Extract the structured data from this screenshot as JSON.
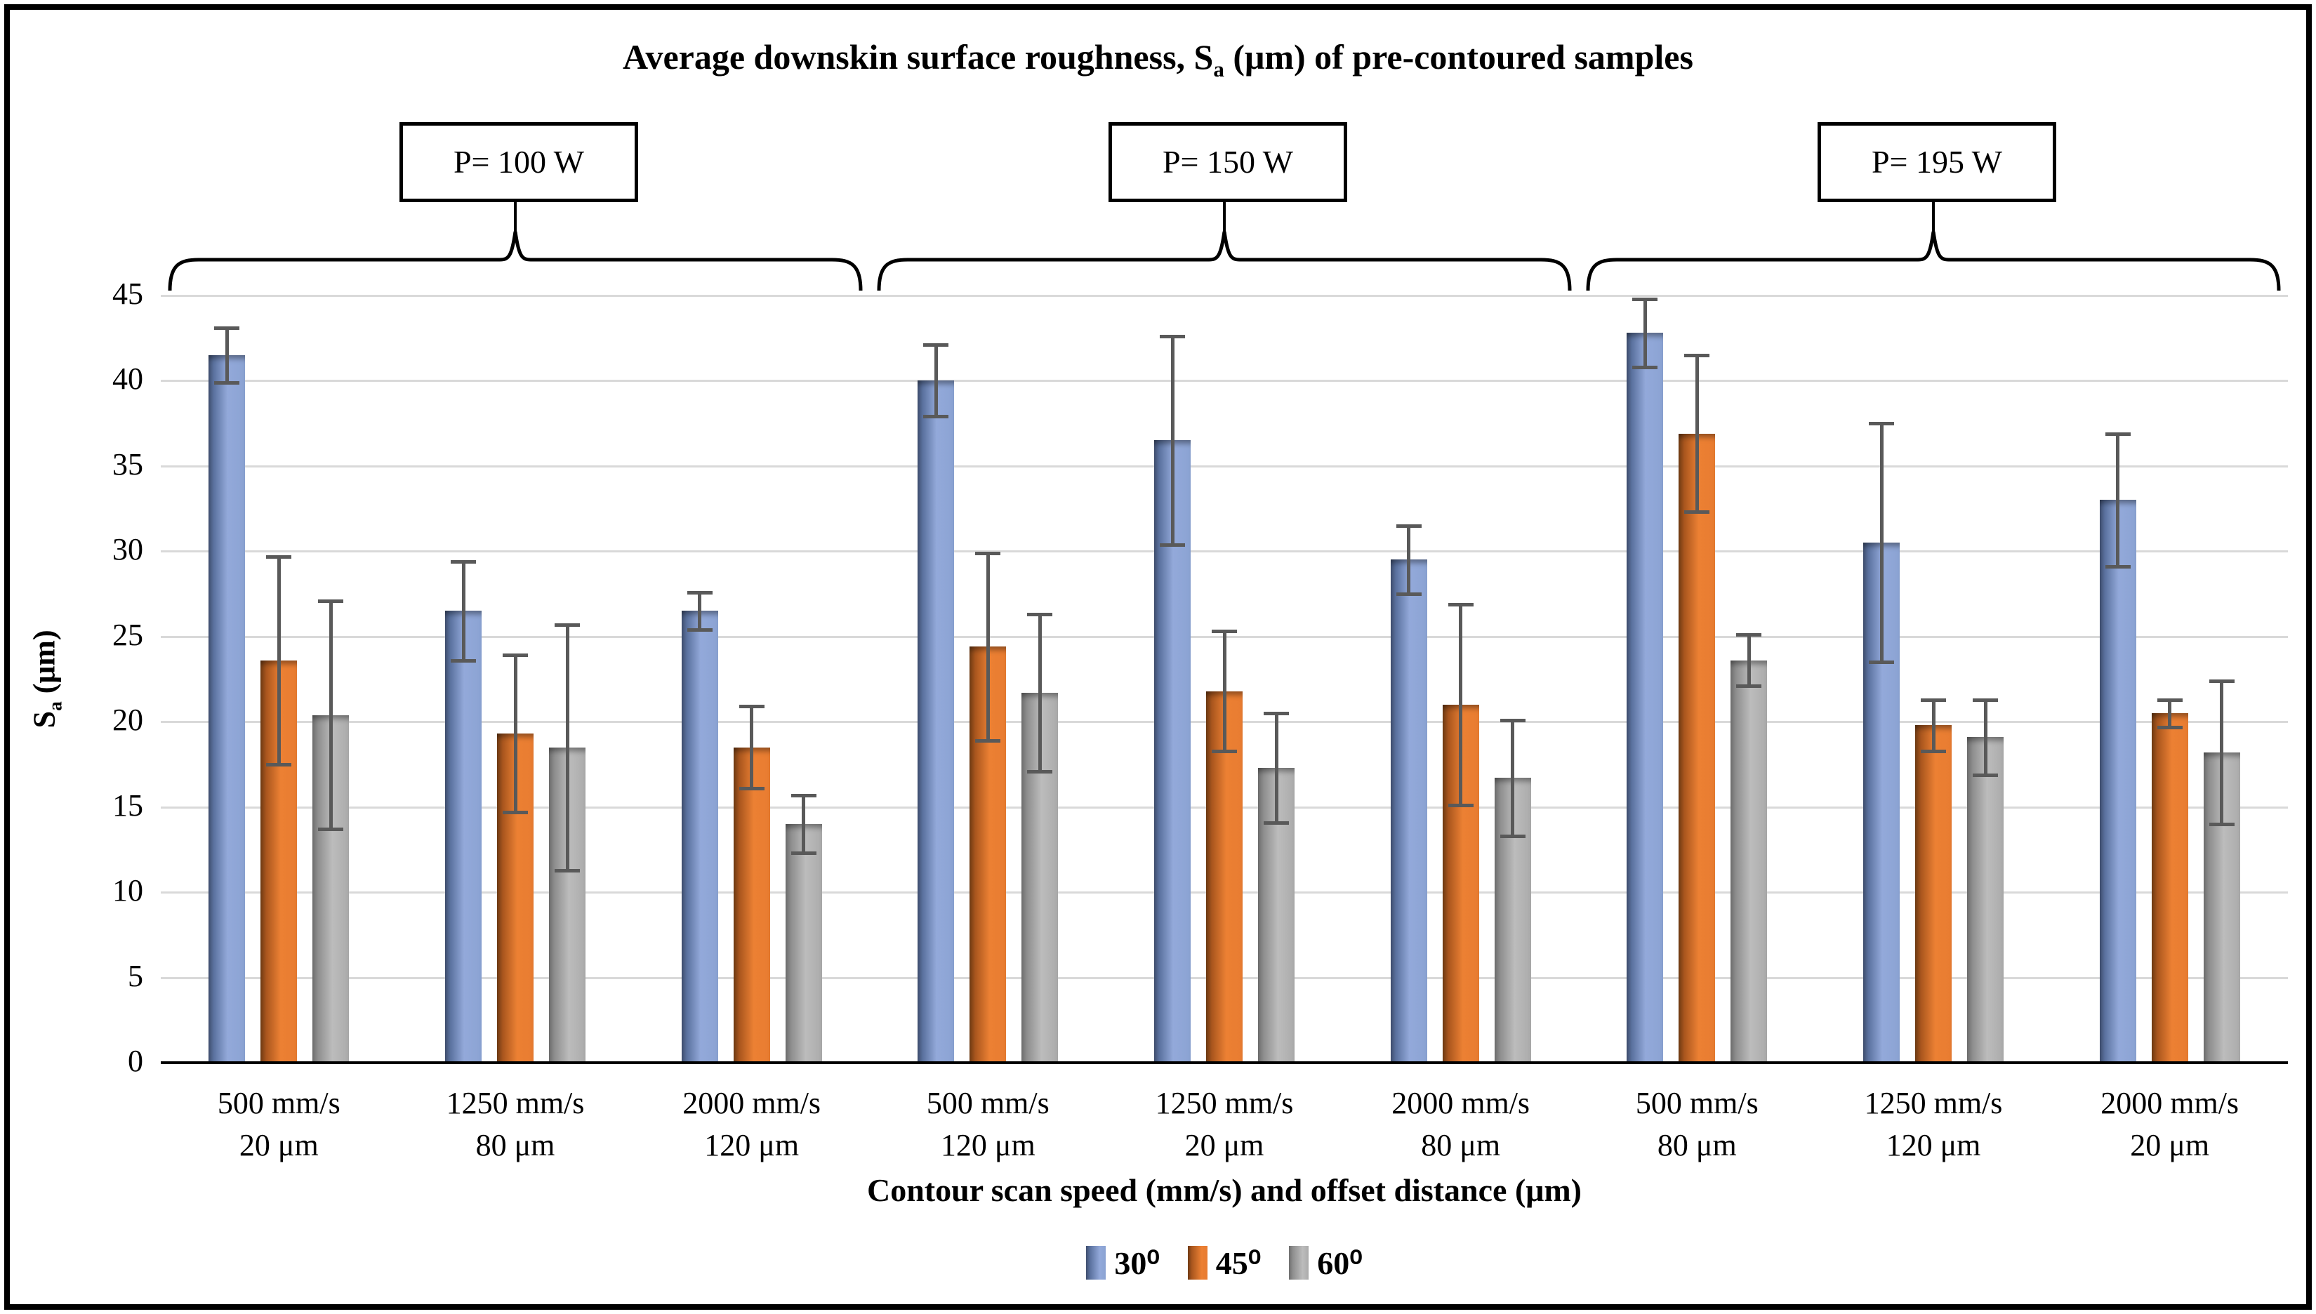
{
  "chart_data": {
    "type": "bar",
    "title": {
      "prefix": "Average downskin surface roughness, S",
      "sub": "a",
      "suffix": " (μm) of pre-contoured samples"
    },
    "ylabel": {
      "prefix": "S",
      "sub": "a",
      "suffix": " (μm)"
    },
    "xlabel": "Contour scan speed (mm/s) and offset distance (μm)",
    "ylim": [
      0,
      45
    ],
    "ytick_step": 5,
    "grid": true,
    "legend_position": "bottom",
    "gridline_color": "#D9D9D9",
    "error_bar_color": "#595959",
    "categories": [
      {
        "line1": "500 mm/s",
        "line2": "20 μm"
      },
      {
        "line1": "1250 mm/s",
        "line2": "80 μm"
      },
      {
        "line1": "2000 mm/s",
        "line2": "120 μm"
      },
      {
        "line1": "500 mm/s",
        "line2": "120 μm"
      },
      {
        "line1": "1250 mm/s",
        "line2": "20 μm"
      },
      {
        "line1": "2000 mm/s",
        "line2": "80 μm"
      },
      {
        "line1": "500 mm/s",
        "line2": "80 μm"
      },
      {
        "line1": "1250 mm/s",
        "line2": "120 μm"
      },
      {
        "line1": "2000 mm/s",
        "line2": "20 μm"
      }
    ],
    "power_groups": [
      {
        "label": "P= 100 W",
        "from": 0,
        "to": 2
      },
      {
        "label": "P= 150 W",
        "from": 3,
        "to": 5
      },
      {
        "label": "P= 195 W",
        "from": 6,
        "to": 8
      }
    ],
    "series": [
      {
        "name": "30⁰",
        "color": "#8BA3D3",
        "color_dark": "#3F4E6E",
        "values": [
          41.5,
          26.5,
          26.5,
          40.0,
          36.5,
          29.5,
          42.8,
          30.5,
          33.0
        ],
        "errors": [
          1.6,
          2.9,
          1.1,
          2.1,
          6.1,
          2.0,
          2.0,
          7.0,
          3.9
        ]
      },
      {
        "name": "45⁰",
        "color": "#E87C31",
        "color_dark": "#6E3A13",
        "values": [
          23.6,
          19.3,
          18.5,
          24.4,
          21.8,
          21.0,
          36.9,
          19.8,
          20.5
        ],
        "errors": [
          6.1,
          4.6,
          2.4,
          5.5,
          3.5,
          5.9,
          4.6,
          1.5,
          0.8
        ]
      },
      {
        "name": "60⁰",
        "color": "#ABABAB",
        "color_dark": "#6E6E6E",
        "values": [
          20.4,
          18.5,
          14.0,
          21.7,
          17.3,
          16.7,
          23.6,
          19.1,
          18.2
        ],
        "errors": [
          6.7,
          7.2,
          1.7,
          4.6,
          3.2,
          3.4,
          1.5,
          2.2,
          4.2
        ]
      }
    ]
  }
}
